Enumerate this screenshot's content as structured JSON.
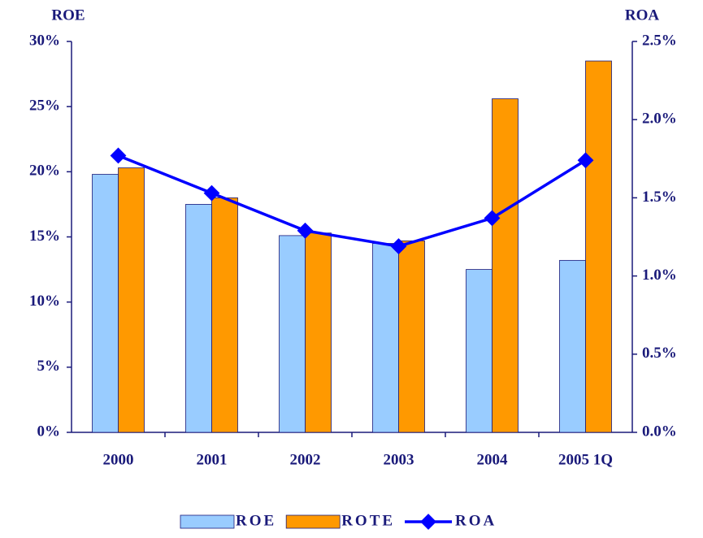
{
  "chart_data": {
    "type": "bar",
    "y_title": "ROE",
    "y2_title": "ROA",
    "categories": [
      "2000",
      "2001",
      "2002",
      "2003",
      "2004",
      "2005 1Q"
    ],
    "series": [
      {
        "name": "ROE",
        "color": "#99ccff",
        "values": [
          19.8,
          17.5,
          15.1,
          14.5,
          12.5,
          13.2
        ]
      },
      {
        "name": "ROTE",
        "color": "#ff9900",
        "values": [
          20.3,
          18.0,
          15.3,
          14.7,
          25.6,
          28.5
        ]
      },
      {
        "name": "ROA",
        "color": "#0000ff",
        "type": "line",
        "axis": "y2",
        "values": [
          1.77,
          1.53,
          1.29,
          1.19,
          1.37,
          1.74
        ]
      }
    ],
    "ylim": [
      0,
      30
    ],
    "yticks": [
      {
        "value": 0,
        "label": "0%"
      },
      {
        "value": 5,
        "label": "5%"
      },
      {
        "value": 10,
        "label": "10%"
      },
      {
        "value": 15,
        "label": "15%"
      },
      {
        "value": 20,
        "label": "20%"
      },
      {
        "value": 25,
        "label": "25%"
      },
      {
        "value": 30,
        "label": "30%"
      }
    ],
    "y2lim": [
      0,
      2.5
    ],
    "y2ticks": [
      {
        "value": 0,
        "label": "0.0%"
      },
      {
        "value": 0.5,
        "label": "0.5%"
      },
      {
        "value": 1.0,
        "label": "1.0%"
      },
      {
        "value": 1.5,
        "label": "1.5%"
      },
      {
        "value": 2.0,
        "label": "2.0%"
      },
      {
        "value": 2.5,
        "label": "2.5%"
      }
    ],
    "legend": "bottom"
  }
}
